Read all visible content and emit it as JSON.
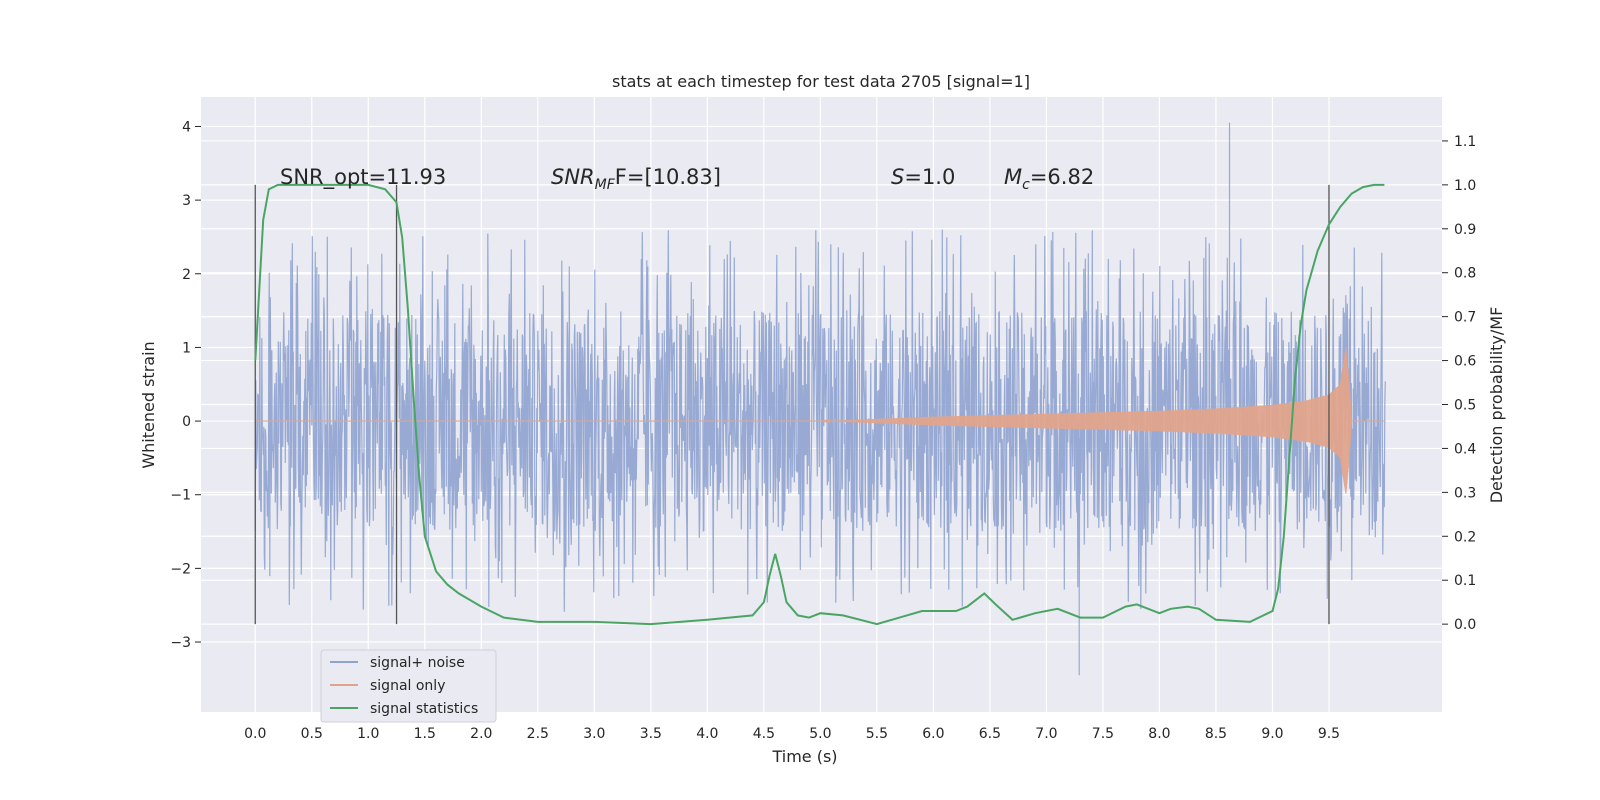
{
  "chart_data": {
    "type": "line",
    "title": "stats at each timestep for test data 2705 [signal=1]",
    "xlabel": "Time (s)",
    "ylabel": "Whitened strain",
    "y2label": "Detection probability/MF",
    "xlim": [
      -0.48,
      10.5
    ],
    "ylim": [
      -3.95,
      4.4
    ],
    "y2lim": [
      -0.2,
      1.2
    ],
    "x_ticks": [
      "0.0",
      "0.5",
      "1.0",
      "1.5",
      "2.0",
      "2.5",
      "3.0",
      "3.5",
      "4.0",
      "4.5",
      "5.0",
      "5.5",
      "6.0",
      "6.5",
      "7.0",
      "7.5",
      "8.0",
      "8.5",
      "9.0",
      "9.5"
    ],
    "y_ticks": [
      "4",
      "3",
      "2",
      "1",
      "0",
      "−1",
      "−2",
      "−3"
    ],
    "y2_ticks": [
      "1.1",
      "1.0",
      "0.9",
      "0.8",
      "0.7",
      "0.6",
      "0.5",
      "0.4",
      "0.3",
      "0.2",
      "0.1",
      "0.0"
    ],
    "grid": true,
    "legend_position": "lower-left",
    "annotations": {
      "snr_opt": "SNR_opt=11.93",
      "snr_mf_prefix": "SNR",
      "snr_mf_sub": "MF",
      "snr_mf_value": "F=[10.83]",
      "s_var": "S",
      "s_value": "=1.0",
      "mc_var": "M",
      "mc_sub": "c",
      "mc_value": "=6.82"
    },
    "vertical_lines_x": [
      0.0,
      1.25,
      9.5
    ],
    "series": [
      {
        "name": "signal+ noise",
        "color": "#8fa3cf",
        "x_range": [
          0.0,
          9.999
        ],
        "envelope": {
          "typical_abs": 1.5,
          "frequent_peak": 2.6,
          "max": 4.05,
          "min": -3.45
        }
      },
      {
        "name": "signal only",
        "color": "#e0a48c",
        "x": [
          0.0,
          5.0,
          6.0,
          7.0,
          8.0,
          8.5,
          9.0,
          9.3,
          9.5,
          9.6,
          9.65,
          9.68,
          9.7,
          10.0
        ],
        "amplitude": [
          0.0,
          0.0,
          0.06,
          0.1,
          0.14,
          0.17,
          0.22,
          0.28,
          0.36,
          0.5,
          1.0,
          0.5,
          0.0,
          0.0
        ]
      },
      {
        "name": "signal statistics",
        "color": "#4aa564",
        "x": [
          0.0,
          0.07,
          0.12,
          0.2,
          0.4,
          0.7,
          1.0,
          1.15,
          1.25,
          1.3,
          1.35,
          1.4,
          1.45,
          1.5,
          1.6,
          1.7,
          1.8,
          2.0,
          2.2,
          2.5,
          3.0,
          3.5,
          4.0,
          4.4,
          4.5,
          4.55,
          4.6,
          4.65,
          4.7,
          4.8,
          4.9,
          5.0,
          5.2,
          5.5,
          5.7,
          5.9,
          6.0,
          6.2,
          6.3,
          6.45,
          6.55,
          6.7,
          6.9,
          7.1,
          7.3,
          7.5,
          7.7,
          7.8,
          8.0,
          8.1,
          8.25,
          8.35,
          8.5,
          8.8,
          9.0,
          9.05,
          9.1,
          9.15,
          9.2,
          9.25,
          9.3,
          9.4,
          9.5,
          9.6,
          9.7,
          9.8,
          9.9,
          9.99
        ],
        "y": [
          0.6,
          0.92,
          0.99,
          1.0,
          1.0,
          1.0,
          1.0,
          0.99,
          0.96,
          0.88,
          0.72,
          0.52,
          0.34,
          0.2,
          0.12,
          0.09,
          0.07,
          0.04,
          0.015,
          0.005,
          0.005,
          0.0,
          0.01,
          0.02,
          0.05,
          0.11,
          0.16,
          0.11,
          0.05,
          0.02,
          0.015,
          0.025,
          0.02,
          0.0,
          0.015,
          0.03,
          0.03,
          0.03,
          0.04,
          0.07,
          0.045,
          0.01,
          0.025,
          0.035,
          0.015,
          0.015,
          0.04,
          0.045,
          0.025,
          0.035,
          0.04,
          0.035,
          0.01,
          0.005,
          0.03,
          0.08,
          0.2,
          0.38,
          0.56,
          0.68,
          0.76,
          0.85,
          0.91,
          0.95,
          0.98,
          0.995,
          1.0,
          1.0
        ]
      }
    ]
  }
}
